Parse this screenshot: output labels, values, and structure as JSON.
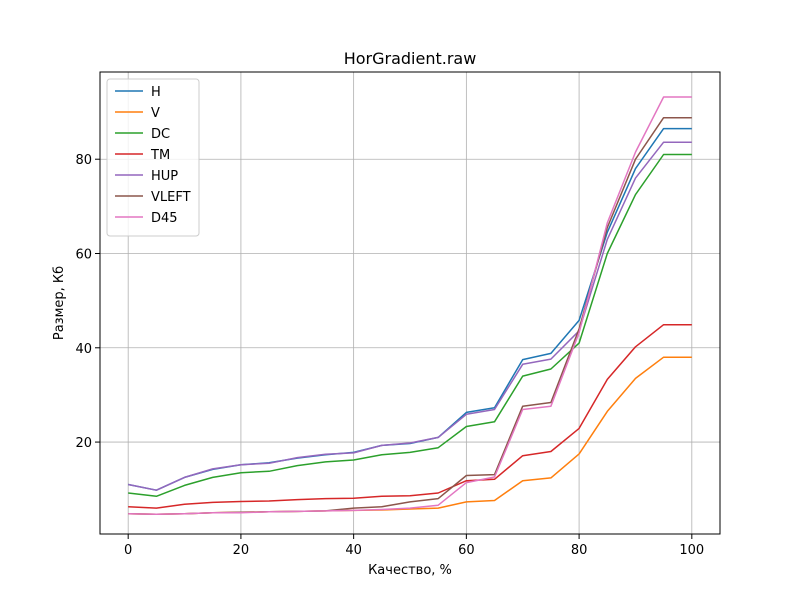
{
  "chart_data": {
    "type": "line",
    "title": "HorGradient.raw",
    "xlabel": "Качество, %",
    "ylabel": "Размер, Кб",
    "xlim": [
      -5,
      105
    ],
    "ylim": [
      0.5,
      98.5
    ],
    "xticks": [
      0,
      20,
      40,
      60,
      80,
      100
    ],
    "yticks": [
      20,
      40,
      60,
      80
    ],
    "grid": true,
    "legend_position": "top-left",
    "x": [
      0,
      5,
      10,
      15,
      20,
      25,
      30,
      35,
      40,
      45,
      50,
      55,
      60,
      65,
      70,
      75,
      80,
      85,
      90,
      95,
      100
    ],
    "series": [
      {
        "name": "H",
        "color": "#1f77b4",
        "values": [
          11.0,
          9.8,
          12.5,
          14.2,
          15.2,
          15.6,
          16.6,
          17.3,
          17.8,
          19.3,
          19.7,
          21.0,
          26.3,
          27.3,
          37.5,
          38.8,
          45.8,
          64.5,
          78.0,
          86.5,
          86.5
        ]
      },
      {
        "name": "V",
        "color": "#ff7f0e",
        "values": [
          4.8,
          4.7,
          4.8,
          5.0,
          5.1,
          5.2,
          5.3,
          5.4,
          5.5,
          5.6,
          5.8,
          6.0,
          7.3,
          7.6,
          11.8,
          12.4,
          17.5,
          26.5,
          33.5,
          38.0,
          38.0
        ]
      },
      {
        "name": "DC",
        "color": "#2ca02c",
        "values": [
          9.2,
          8.5,
          10.8,
          12.5,
          13.5,
          13.8,
          15.0,
          15.8,
          16.2,
          17.3,
          17.8,
          18.8,
          23.3,
          24.3,
          34.0,
          35.5,
          41.0,
          60.0,
          72.5,
          81.0,
          81.0
        ]
      },
      {
        "name": "TM",
        "color": "#d62728",
        "values": [
          6.3,
          6.0,
          6.8,
          7.2,
          7.4,
          7.5,
          7.8,
          8.0,
          8.1,
          8.5,
          8.6,
          9.2,
          11.8,
          12.1,
          17.1,
          18.0,
          22.9,
          33.3,
          40.2,
          44.9,
          44.9
        ]
      },
      {
        "name": "HUP",
        "color": "#9467bd",
        "values": [
          11.0,
          9.8,
          12.5,
          14.3,
          15.2,
          15.5,
          16.7,
          17.4,
          17.7,
          19.3,
          19.8,
          21.0,
          25.9,
          26.9,
          36.5,
          37.6,
          43.6,
          63.0,
          76.0,
          83.6,
          83.6
        ]
      },
      {
        "name": "VLEFT",
        "color": "#8c564b",
        "values": [
          4.8,
          4.7,
          4.8,
          5.0,
          5.1,
          5.2,
          5.3,
          5.4,
          6.0,
          6.3,
          7.3,
          8.0,
          12.9,
          13.1,
          27.6,
          28.4,
          44.0,
          65.5,
          80.0,
          88.8,
          88.8
        ]
      },
      {
        "name": "D45",
        "color": "#e377c2",
        "values": [
          4.8,
          4.7,
          4.8,
          5.0,
          5.0,
          5.2,
          5.3,
          5.4,
          5.5,
          5.7,
          6.0,
          6.6,
          11.4,
          12.6,
          26.9,
          27.6,
          43.2,
          66.5,
          81.5,
          93.2,
          93.2
        ]
      }
    ]
  }
}
